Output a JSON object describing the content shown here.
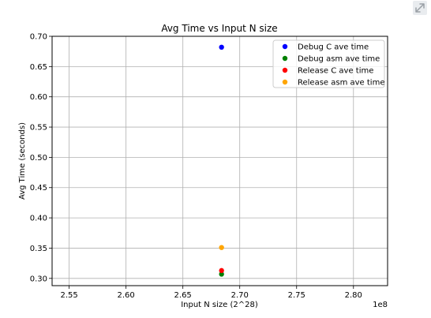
{
  "chart_data": {
    "type": "scatter",
    "title": "Avg Time vs Input N size",
    "xlabel": "Input N size (2^28)",
    "ylabel": "Avg Time (seconds)",
    "x_offset_label": "1e8",
    "xlim": [
      2.535,
      2.83
    ],
    "ylim": [
      0.288,
      0.7
    ],
    "x_ticks": [
      2.55,
      2.6,
      2.65,
      2.7,
      2.75,
      2.8
    ],
    "x_tick_labels": [
      "2.55",
      "2.60",
      "2.65",
      "2.70",
      "2.75",
      "2.80"
    ],
    "y_ticks": [
      0.3,
      0.35,
      0.4,
      0.45,
      0.5,
      0.55,
      0.6,
      0.65,
      0.7
    ],
    "y_tick_labels": [
      "0.30",
      "0.35",
      "0.40",
      "0.45",
      "0.50",
      "0.55",
      "0.60",
      "0.65",
      "0.70"
    ],
    "grid": true,
    "legend_position": "top-right",
    "series": [
      {
        "name": "Debug C ave time",
        "color": "#0000ff",
        "points": [
          {
            "x": 2.684,
            "y": 0.682
          }
        ]
      },
      {
        "name": "Debug asm ave time",
        "color": "#008000",
        "points": [
          {
            "x": 2.684,
            "y": 0.307
          }
        ]
      },
      {
        "name": "Release C ave time",
        "color": "#ff0000",
        "points": [
          {
            "x": 2.684,
            "y": 0.313
          }
        ]
      },
      {
        "name": "Release asm ave time",
        "color": "#ffa500",
        "points": [
          {
            "x": 2.684,
            "y": 0.351
          }
        ]
      }
    ]
  },
  "toolbar": {
    "expand_icon": "expand-icon"
  }
}
